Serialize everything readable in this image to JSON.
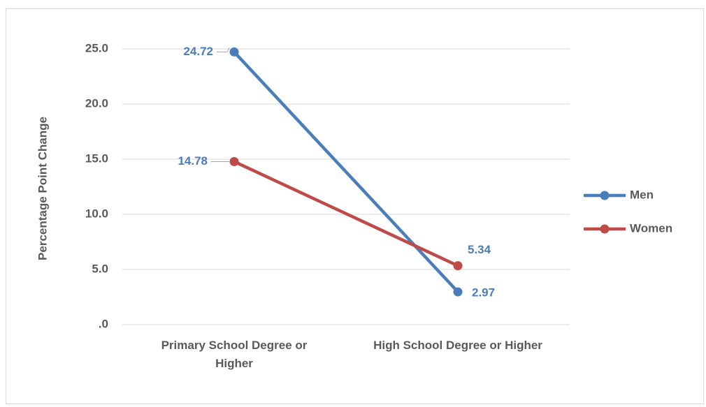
{
  "chart_data": {
    "type": "line",
    "y_label": "Percentage Point Change",
    "categories": [
      "Primary School Degree or Higher",
      "High School Degree or Higher"
    ],
    "series": [
      {
        "name": "Men",
        "color": "#4a7ebb",
        "values": [
          24.72,
          2.97
        ]
      },
      {
        "name": "Women",
        "color": "#be4b48",
        "values": [
          14.78,
          5.34
        ]
      }
    ],
    "data_label_color": "#4a7ebb",
    "ylim": [
      0,
      25
    ],
    "yticks": [
      {
        "value": 0,
        "label": ".0"
      },
      {
        "value": 5,
        "label": "5.0"
      },
      {
        "value": 10,
        "label": "10.0"
      },
      {
        "value": 15,
        "label": "15.0"
      },
      {
        "value": 20,
        "label": "20.0"
      },
      {
        "value": 25,
        "label": "25.0"
      }
    ],
    "grid": true,
    "legend": "right"
  }
}
